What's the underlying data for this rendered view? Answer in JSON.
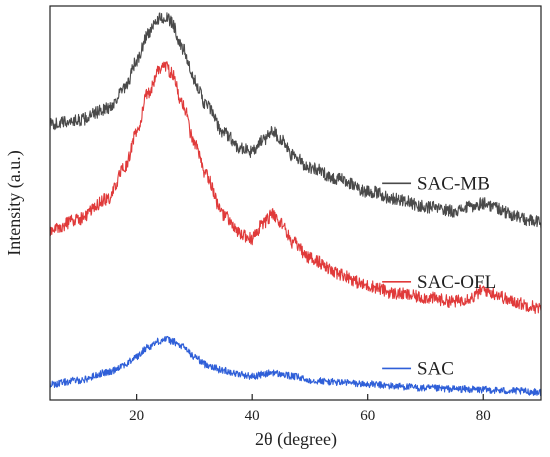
{
  "chart_data": {
    "type": "line",
    "title": "",
    "xlabel": "2θ (degree)",
    "ylabel": "Intensity (a.u.)",
    "xlim": [
      5,
      90
    ],
    "ylim": [
      0,
      100
    ],
    "x_ticks": [
      20,
      40,
      60,
      80
    ],
    "x_tick_labels": [
      "20",
      "40",
      "60",
      "80"
    ],
    "y_ticks_shown": false,
    "grid": false,
    "legend_placement": "inline-right",
    "series": [
      {
        "name": "SAC-MB",
        "color": "#4a4a4a",
        "x": [
          5,
          10,
          15,
          18,
          20,
          22,
          24,
          25,
          26,
          28,
          30,
          32,
          35,
          38,
          40,
          42,
          43.5,
          45,
          47,
          50,
          55,
          60,
          65,
          70,
          75,
          78,
          80,
          82,
          85,
          88,
          90
        ],
        "y": [
          70,
          71,
          74,
          79,
          86,
          93,
          97,
          97,
          96,
          89,
          81,
          75,
          68,
          64,
          63,
          66,
          68.5,
          66,
          62,
          59,
          56,
          53,
          51,
          49,
          48,
          49,
          50,
          49,
          47,
          45.5,
          45
        ]
      },
      {
        "name": "SAC-OFL",
        "color": "#e03a3a",
        "x": [
          5,
          10,
          15,
          18,
          20,
          22,
          24,
          25,
          26,
          28,
          30,
          32,
          35,
          38,
          40,
          42,
          43.5,
          45,
          47,
          50,
          55,
          60,
          65,
          70,
          75,
          78,
          80,
          82,
          85,
          88,
          90
        ],
        "y": [
          43,
          46,
          51,
          59,
          68,
          78,
          84,
          85,
          83,
          75,
          65,
          57,
          47,
          42,
          41,
          45,
          47,
          45,
          40,
          36,
          32,
          29,
          27,
          26,
          25,
          26,
          28,
          27,
          25,
          24,
          23
        ]
      },
      {
        "name": "SAC",
        "color": "#2f5fd8",
        "x": [
          5,
          10,
          15,
          18,
          20,
          22,
          24,
          25,
          26,
          28,
          30,
          32,
          35,
          38,
          40,
          42,
          43.5,
          45,
          47,
          50,
          55,
          60,
          65,
          70,
          75,
          80,
          85,
          90
        ],
        "y": [
          4,
          5,
          7,
          9,
          11,
          13.5,
          15,
          15.5,
          15,
          13.5,
          11,
          9,
          7.5,
          6.5,
          6,
          6.5,
          7,
          6.5,
          6,
          5,
          4.5,
          4,
          3.5,
          3,
          2.8,
          2.6,
          2.3,
          2
        ]
      }
    ]
  }
}
